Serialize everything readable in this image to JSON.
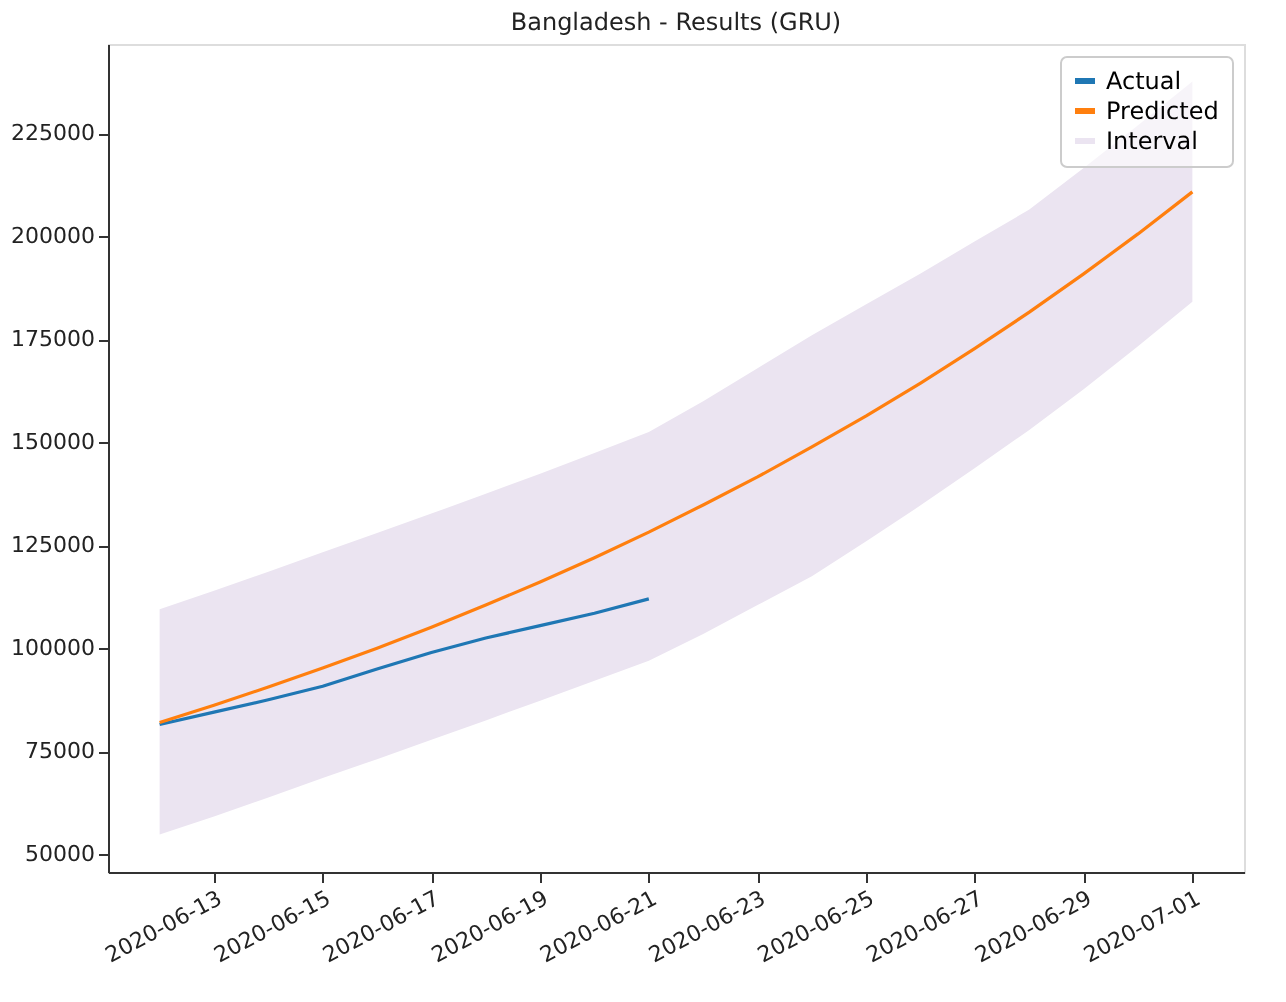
{
  "chart_data": {
    "type": "line",
    "title": "Bangladesh - Results (GRU)",
    "x": [
      "2020-06-12",
      "2020-06-13",
      "2020-06-14",
      "2020-06-15",
      "2020-06-16",
      "2020-06-17",
      "2020-06-18",
      "2020-06-19",
      "2020-06-20",
      "2020-06-21",
      "2020-06-22",
      "2020-06-23",
      "2020-06-24",
      "2020-06-25",
      "2020-06-26",
      "2020-06-27",
      "2020-06-28",
      "2020-06-29",
      "2020-06-30",
      "2020-07-01"
    ],
    "series": [
      {
        "name": "Actual",
        "color": "#1f77b4",
        "x": [
          "2020-06-12",
          "2020-06-13",
          "2020-06-14",
          "2020-06-15",
          "2020-06-16",
          "2020-06-17",
          "2020-06-18",
          "2020-06-19",
          "2020-06-20",
          "2020-06-21"
        ],
        "values": [
          81500,
          84500,
          87500,
          90800,
          95000,
          99000,
          102500,
          105500,
          108500,
          112000
        ]
      },
      {
        "name": "Predicted",
        "color": "#ff7f0e",
        "values": [
          82000,
          86200,
          90600,
          95200,
          100000,
          105100,
          110500,
          116100,
          122000,
          128200,
          134800,
          141600,
          148900,
          156400,
          164400,
          172800,
          181600,
          190900,
          200600,
          210800
        ],
        "lower": [
          54800,
          59200,
          63800,
          68500,
          73100,
          77800,
          82500,
          87300,
          92100,
          97000,
          103500,
          110500,
          117500,
          126000,
          134700,
          143800,
          153000,
          162900,
          173300,
          184100
        ],
        "upper": [
          109500,
          114000,
          118600,
          123300,
          128000,
          132700,
          137500,
          142400,
          147400,
          152500,
          160000,
          168000,
          176000,
          183500,
          191000,
          198800,
          206500,
          216600,
          227000,
          237600
        ]
      }
    ],
    "annotations": [
      "Interval"
    ],
    "xlim": [
      "2020-06-11T01:12",
      "2020-07-01T22:48"
    ],
    "xticks": [
      "2020-06-13",
      "2020-06-15",
      "2020-06-17",
      "2020-06-19",
      "2020-06-21",
      "2020-06-23",
      "2020-06-25",
      "2020-06-27",
      "2020-06-29",
      "2020-07-01"
    ],
    "ylim": [
      45700,
      246700
    ],
    "yticks": [
      50000,
      75000,
      100000,
      125000,
      150000,
      175000,
      200000,
      225000
    ],
    "legend": "top right",
    "grid": false,
    "line_style": "solid",
    "marker": "none"
  }
}
